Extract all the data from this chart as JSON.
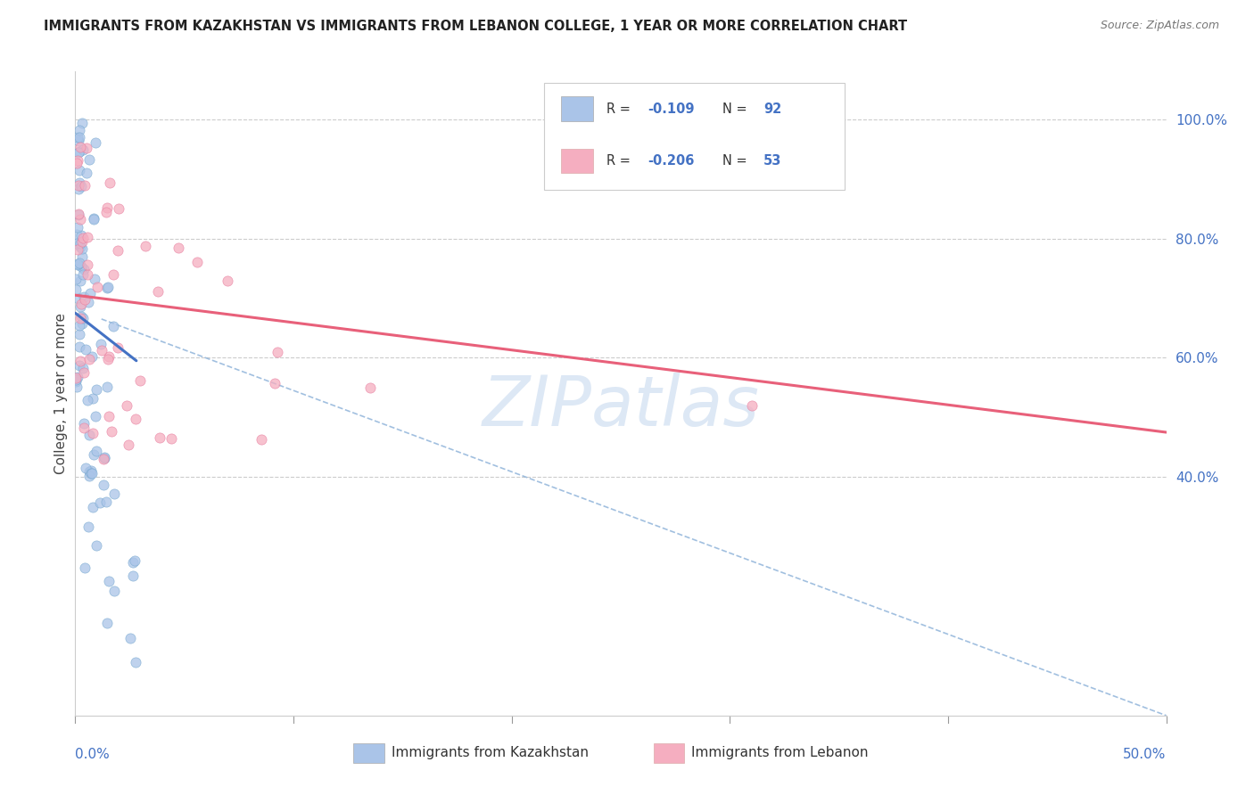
{
  "title": "IMMIGRANTS FROM KAZAKHSTAN VS IMMIGRANTS FROM LEBANON COLLEGE, 1 YEAR OR MORE CORRELATION CHART",
  "source": "Source: ZipAtlas.com",
  "ylabel": "College, 1 year or more",
  "kaz_color": "#aac4e8",
  "leb_color": "#f5aec0",
  "kaz_edge_color": "#7aaad0",
  "leb_edge_color": "#e880a0",
  "kaz_line_color": "#4472c4",
  "leb_line_color": "#e8607a",
  "dashed_line_color": "#8ab0d8",
  "grid_color": "#cccccc",
  "background_color": "#ffffff",
  "watermark": "ZIPatlas",
  "watermark_color": "#dde8f5",
  "legend1_r": "-0.109",
  "legend1_n": "92",
  "legend2_r": "-0.206",
  "legend2_n": "53",
  "xlim": [
    0.0,
    0.5
  ],
  "ylim": [
    0.0,
    1.08
  ],
  "yticks": [
    0.4,
    0.6,
    0.8,
    1.0
  ],
  "ytick_labels": [
    "40.0%",
    "60.0%",
    "80.0%",
    "100.0%"
  ],
  "kaz_line_x": [
    0.0,
    0.028
  ],
  "kaz_line_y": [
    0.675,
    0.595
  ],
  "leb_line_x": [
    0.0,
    0.5
  ],
  "leb_line_y": [
    0.705,
    0.475
  ],
  "dash_line_x": [
    0.012,
    0.5
  ],
  "dash_line_y": [
    0.665,
    0.0
  ]
}
